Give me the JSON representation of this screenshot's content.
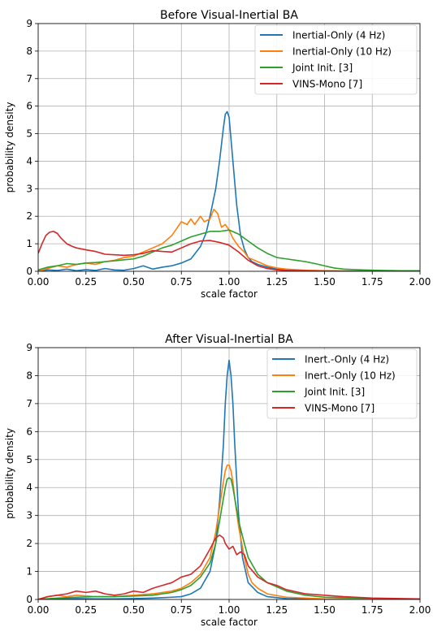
{
  "chart_data": [
    {
      "type": "line",
      "title": "Before Visual-Inertial BA",
      "xlabel": "scale factor",
      "ylabel": "probability density",
      "xlim": [
        0,
        2
      ],
      "ylim": [
        0,
        9
      ],
      "xticks": [
        "0.00",
        "0.25",
        "0.50",
        "0.75",
        "1.00",
        "1.25",
        "1.50",
        "1.75",
        "2.00"
      ],
      "yticks": [
        "0",
        "1",
        "2",
        "3",
        "4",
        "5",
        "6",
        "7",
        "8",
        "9"
      ],
      "grid": true,
      "legend_position": "top-right",
      "series": [
        {
          "name": "Inertial-Only (4 Hz)",
          "color": "#1f77b4",
          "x": [
            0.0,
            0.05,
            0.1,
            0.15,
            0.2,
            0.25,
            0.3,
            0.35,
            0.4,
            0.45,
            0.5,
            0.55,
            0.6,
            0.65,
            0.7,
            0.75,
            0.8,
            0.85,
            0.88,
            0.9,
            0.93,
            0.95,
            0.97,
            0.98,
            0.99,
            1.0,
            1.02,
            1.04,
            1.06,
            1.08,
            1.1,
            1.12,
            1.15,
            1.2,
            1.25,
            1.3,
            1.4,
            1.5,
            1.75,
            2.0
          ],
          "y": [
            0.0,
            0.05,
            0.03,
            0.08,
            0.02,
            0.06,
            0.03,
            0.1,
            0.05,
            0.04,
            0.1,
            0.2,
            0.08,
            0.15,
            0.2,
            0.3,
            0.45,
            0.9,
            1.4,
            2.0,
            3.0,
            4.0,
            5.2,
            5.7,
            5.8,
            5.6,
            4.0,
            2.4,
            1.3,
            0.8,
            0.5,
            0.35,
            0.25,
            0.15,
            0.08,
            0.05,
            0.02,
            0.01,
            0.0,
            0.0
          ]
        },
        {
          "name": "Inertial-Only (10 Hz)",
          "color": "#ff7f0e",
          "x": [
            0.0,
            0.05,
            0.1,
            0.15,
            0.2,
            0.25,
            0.3,
            0.35,
            0.4,
            0.45,
            0.5,
            0.55,
            0.6,
            0.65,
            0.7,
            0.72,
            0.75,
            0.78,
            0.8,
            0.82,
            0.85,
            0.87,
            0.9,
            0.92,
            0.94,
            0.96,
            0.98,
            1.0,
            1.02,
            1.05,
            1.08,
            1.1,
            1.15,
            1.2,
            1.25,
            1.3,
            1.4,
            1.5,
            1.75,
            2.0
          ],
          "y": [
            0.0,
            0.1,
            0.2,
            0.15,
            0.25,
            0.3,
            0.25,
            0.35,
            0.4,
            0.5,
            0.55,
            0.7,
            0.85,
            1.0,
            1.3,
            1.5,
            1.8,
            1.7,
            1.9,
            1.7,
            2.0,
            1.8,
            1.9,
            2.25,
            2.1,
            1.6,
            1.7,
            1.5,
            1.2,
            0.9,
            0.7,
            0.5,
            0.35,
            0.2,
            0.12,
            0.08,
            0.04,
            0.02,
            0.0,
            0.0
          ]
        },
        {
          "name": "Joint Init. [3]",
          "color": "#2ca02c",
          "x": [
            0.0,
            0.05,
            0.1,
            0.15,
            0.2,
            0.25,
            0.3,
            0.35,
            0.4,
            0.45,
            0.5,
            0.55,
            0.6,
            0.65,
            0.7,
            0.75,
            0.8,
            0.85,
            0.9,
            0.95,
            1.0,
            1.05,
            1.1,
            1.15,
            1.2,
            1.25,
            1.3,
            1.35,
            1.4,
            1.45,
            1.5,
            1.55,
            1.6,
            1.7,
            1.8,
            1.9,
            2.0
          ],
          "y": [
            0.05,
            0.15,
            0.2,
            0.28,
            0.25,
            0.3,
            0.32,
            0.35,
            0.38,
            0.42,
            0.45,
            0.55,
            0.7,
            0.85,
            0.95,
            1.1,
            1.25,
            1.35,
            1.45,
            1.45,
            1.5,
            1.35,
            1.1,
            0.85,
            0.65,
            0.5,
            0.45,
            0.4,
            0.35,
            0.28,
            0.2,
            0.12,
            0.08,
            0.05,
            0.03,
            0.02,
            0.02
          ]
        },
        {
          "name": "VINS-Mono [7]",
          "color": "#d62728",
          "x": [
            0.0,
            0.02,
            0.04,
            0.06,
            0.08,
            0.1,
            0.12,
            0.15,
            0.18,
            0.2,
            0.25,
            0.3,
            0.35,
            0.4,
            0.45,
            0.5,
            0.55,
            0.6,
            0.65,
            0.7,
            0.75,
            0.8,
            0.85,
            0.9,
            0.95,
            1.0,
            1.05,
            1.1,
            1.15,
            1.2,
            1.25,
            1.3,
            1.4,
            1.5,
            1.75,
            2.0
          ],
          "y": [
            0.65,
            1.0,
            1.3,
            1.42,
            1.45,
            1.38,
            1.2,
            1.0,
            0.9,
            0.85,
            0.78,
            0.72,
            0.62,
            0.6,
            0.58,
            0.6,
            0.65,
            0.75,
            0.72,
            0.7,
            0.85,
            1.0,
            1.1,
            1.12,
            1.05,
            0.95,
            0.7,
            0.4,
            0.2,
            0.1,
            0.05,
            0.03,
            0.02,
            0.01,
            0.0,
            0.0
          ]
        }
      ]
    },
    {
      "type": "line",
      "title": "After Visual-Inertial BA",
      "xlabel": "scale factor",
      "ylabel": "probability density",
      "xlim": [
        0,
        2
      ],
      "ylim": [
        0,
        9
      ],
      "xticks": [
        "0.00",
        "0.25",
        "0.50",
        "0.75",
        "1.00",
        "1.25",
        "1.50",
        "1.75",
        "2.00"
      ],
      "yticks": [
        "0",
        "1",
        "2",
        "3",
        "4",
        "5",
        "6",
        "7",
        "8",
        "9"
      ],
      "grid": true,
      "legend_position": "top-right",
      "series": [
        {
          "name": "Inert.-Only (4 Hz)",
          "color": "#1f77b4",
          "x": [
            0.0,
            0.1,
            0.2,
            0.3,
            0.4,
            0.5,
            0.6,
            0.7,
            0.75,
            0.8,
            0.85,
            0.9,
            0.93,
            0.95,
            0.97,
            0.98,
            0.99,
            1.0,
            1.01,
            1.02,
            1.03,
            1.05,
            1.07,
            1.1,
            1.15,
            1.2,
            1.3,
            1.5,
            2.0
          ],
          "y": [
            0.0,
            0.02,
            0.03,
            0.02,
            0.02,
            0.03,
            0.05,
            0.08,
            0.1,
            0.2,
            0.4,
            1.0,
            2.0,
            3.5,
            5.5,
            7.0,
            8.0,
            8.55,
            8.0,
            7.0,
            5.5,
            3.0,
            1.5,
            0.6,
            0.25,
            0.1,
            0.03,
            0.01,
            0.0
          ]
        },
        {
          "name": "Inert.-Only (10 Hz)",
          "color": "#ff7f0e",
          "x": [
            0.0,
            0.05,
            0.1,
            0.15,
            0.2,
            0.3,
            0.4,
            0.5,
            0.6,
            0.7,
            0.75,
            0.8,
            0.85,
            0.9,
            0.93,
            0.95,
            0.97,
            0.98,
            0.99,
            1.0,
            1.01,
            1.02,
            1.03,
            1.05,
            1.08,
            1.1,
            1.12,
            1.15,
            1.2,
            1.3,
            1.5,
            2.0
          ],
          "y": [
            0.0,
            0.1,
            0.15,
            0.1,
            0.15,
            0.1,
            0.1,
            0.15,
            0.2,
            0.3,
            0.4,
            0.6,
            0.9,
            1.5,
            2.4,
            3.3,
            4.2,
            4.6,
            4.8,
            4.8,
            4.6,
            4.2,
            3.6,
            2.6,
            1.5,
            0.9,
            0.6,
            0.4,
            0.2,
            0.08,
            0.02,
            0.0
          ]
        },
        {
          "name": "Joint Init. [3]",
          "color": "#2ca02c",
          "x": [
            0.0,
            0.1,
            0.2,
            0.3,
            0.4,
            0.5,
            0.6,
            0.7,
            0.75,
            0.8,
            0.85,
            0.9,
            0.93,
            0.95,
            0.97,
            0.98,
            0.99,
            1.0,
            1.01,
            1.02,
            1.03,
            1.05,
            1.08,
            1.1,
            1.15,
            1.2,
            1.3,
            1.4,
            1.5,
            2.0
          ],
          "y": [
            0.0,
            0.05,
            0.08,
            0.1,
            0.1,
            0.12,
            0.15,
            0.25,
            0.35,
            0.5,
            0.8,
            1.3,
            2.0,
            2.8,
            3.6,
            4.0,
            4.3,
            4.35,
            4.3,
            4.0,
            3.6,
            2.8,
            2.0,
            1.5,
            0.9,
            0.6,
            0.3,
            0.15,
            0.08,
            0.0
          ]
        },
        {
          "name": "VINS-Mono [7]",
          "color": "#d62728",
          "x": [
            0.0,
            0.05,
            0.1,
            0.15,
            0.2,
            0.25,
            0.3,
            0.35,
            0.4,
            0.45,
            0.5,
            0.55,
            0.6,
            0.65,
            0.7,
            0.75,
            0.8,
            0.85,
            0.9,
            0.93,
            0.95,
            0.97,
            0.98,
            1.0,
            1.02,
            1.04,
            1.06,
            1.08,
            1.1,
            1.15,
            1.2,
            1.25,
            1.3,
            1.4,
            1.5,
            1.6,
            1.75,
            2.0
          ],
          "y": [
            0.0,
            0.1,
            0.15,
            0.2,
            0.3,
            0.25,
            0.3,
            0.2,
            0.15,
            0.2,
            0.3,
            0.25,
            0.4,
            0.5,
            0.6,
            0.8,
            0.9,
            1.2,
            1.8,
            2.2,
            2.3,
            2.2,
            2.0,
            1.8,
            1.9,
            1.6,
            1.7,
            1.6,
            1.2,
            0.8,
            0.6,
            0.5,
            0.35,
            0.2,
            0.15,
            0.1,
            0.05,
            0.02
          ]
        }
      ]
    }
  ]
}
